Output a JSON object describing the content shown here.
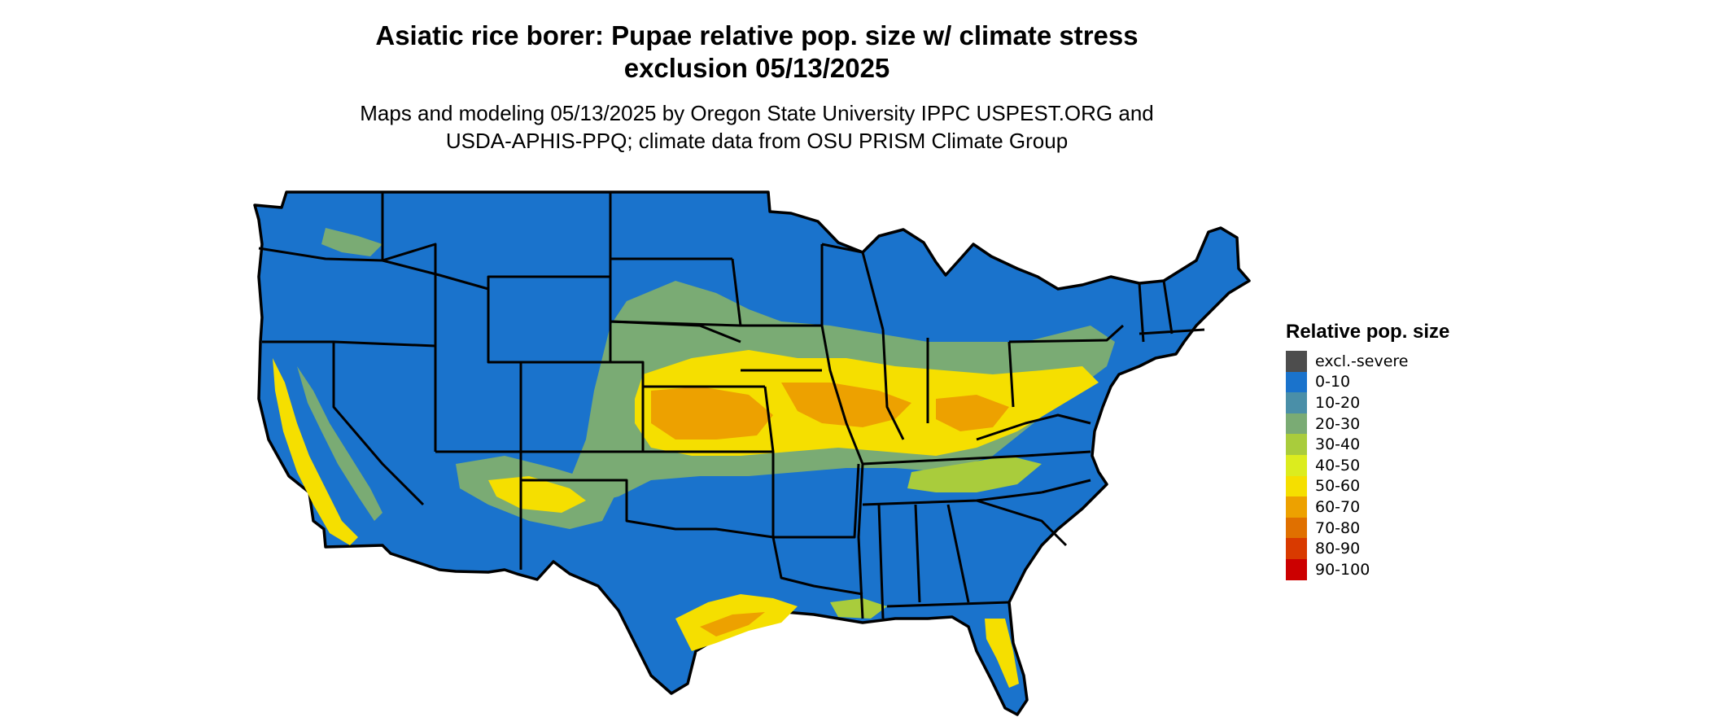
{
  "title_line1": "Asiatic rice borer: Pupae relative pop. size w/ climate stress",
  "title_line2": "exclusion 05/13/2025",
  "subtitle_line1": "Maps and modeling 05/13/2025 by Oregon State University IPPC USPEST.ORG and",
  "subtitle_line2": "USDA-APHIS-PPQ; climate data from OSU PRISM Climate Group",
  "legend": {
    "title": "Relative pop. size",
    "items": [
      {
        "label": "excl.-severe",
        "color": "#4d4d4d"
      },
      {
        "label": "0-10",
        "color": "#1a73cc"
      },
      {
        "label": "10-20",
        "color": "#4a8fa8"
      },
      {
        "label": "20-30",
        "color": "#7aab74"
      },
      {
        "label": "30-40",
        "color": "#a9cc3c"
      },
      {
        "label": "40-50",
        "color": "#dcec1e"
      },
      {
        "label": "50-60",
        "color": "#f5df00"
      },
      {
        "label": "60-70",
        "color": "#eda100"
      },
      {
        "label": "70-80",
        "color": "#e07000"
      },
      {
        "label": "80-90",
        "color": "#d93a00"
      },
      {
        "label": "90-100",
        "color": "#cc0000"
      }
    ]
  }
}
